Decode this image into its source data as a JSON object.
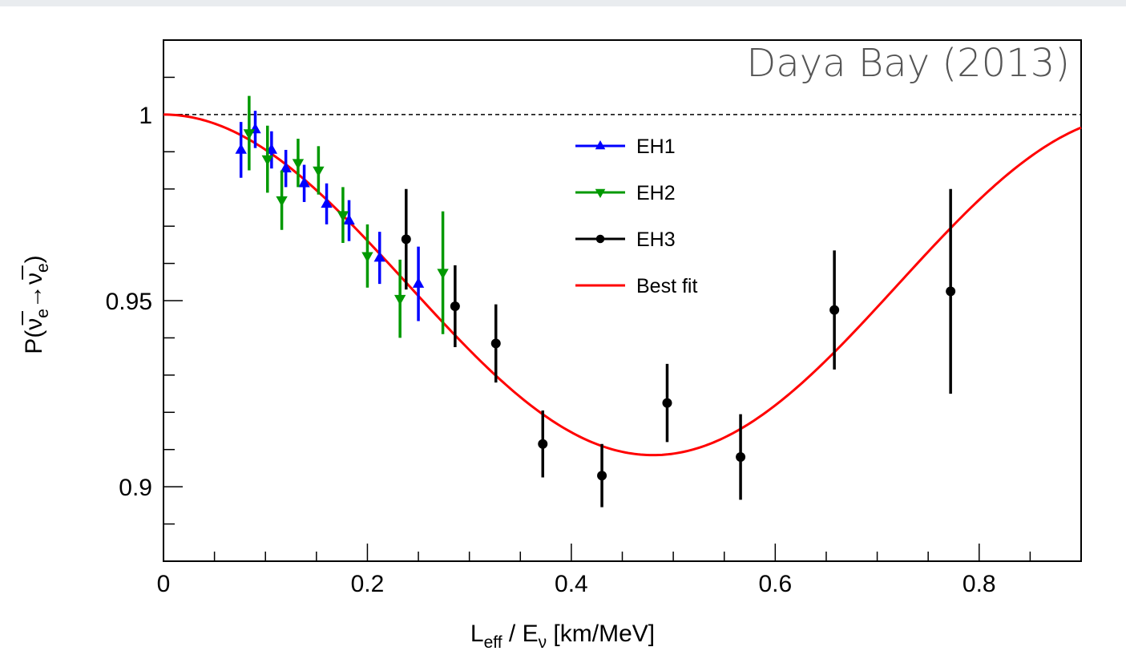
{
  "chart_data": {
    "type": "scatter",
    "title": "",
    "annotation": "Daya Bay (2013)",
    "xlabel": {
      "main": "L",
      "sub": "eff",
      "mid": " / E",
      "sub2": "ν",
      "tail": " [km/MeV]"
    },
    "ylabel": {
      "text": "P(ν̅e→ν̅e)",
      "parts": [
        "P(",
        "ν̅",
        "e",
        "→",
        "ν̅",
        "e",
        ")"
      ]
    },
    "xlim": [
      0,
      0.9
    ],
    "ylim": [
      0.88,
      1.02
    ],
    "x_ticks": [
      {
        "value": 0,
        "label": "0"
      },
      {
        "value": 0.2,
        "label": "0.2"
      },
      {
        "value": 0.4,
        "label": "0.4"
      },
      {
        "value": 0.6,
        "label": "0.6"
      },
      {
        "value": 0.8,
        "label": "0.8"
      }
    ],
    "y_ticks": [
      {
        "value": 0.9,
        "label": "0.9"
      },
      {
        "value": 0.95,
        "label": "0.95"
      },
      {
        "value": 1.0,
        "label": "1"
      }
    ],
    "reference_line": {
      "y": 1.0,
      "style": "dashed"
    },
    "legend": {
      "position": "top-center",
      "entries": [
        {
          "name": "EH1",
          "marker": "triangle-up",
          "color": "#0000ff"
        },
        {
          "name": "EH2",
          "marker": "triangle-down",
          "color": "#009900"
        },
        {
          "name": "EH3",
          "marker": "circle",
          "color": "#000000"
        },
        {
          "name": "Best fit",
          "marker": "line",
          "color": "#ff0000"
        }
      ]
    },
    "series": [
      {
        "name": "EH1",
        "color": "#0000ff",
        "marker": "triangle-up",
        "points": [
          {
            "x": 0.076,
            "y": 0.9905,
            "err": 0.0075
          },
          {
            "x": 0.09,
            "y": 0.996,
            "err": 0.005
          },
          {
            "x": 0.106,
            "y": 0.9905,
            "err": 0.005
          },
          {
            "x": 0.12,
            "y": 0.9855,
            "err": 0.005
          },
          {
            "x": 0.138,
            "y": 0.9815,
            "err": 0.005
          },
          {
            "x": 0.16,
            "y": 0.976,
            "err": 0.0055
          },
          {
            "x": 0.182,
            "y": 0.9715,
            "err": 0.0055
          },
          {
            "x": 0.212,
            "y": 0.9615,
            "err": 0.007
          },
          {
            "x": 0.25,
            "y": 0.9545,
            "err": 0.01
          }
        ]
      },
      {
        "name": "EH2",
        "color": "#009900",
        "marker": "triangle-down",
        "points": [
          {
            "x": 0.084,
            "y": 0.995,
            "err": 0.01
          },
          {
            "x": 0.102,
            "y": 0.988,
            "err": 0.009
          },
          {
            "x": 0.116,
            "y": 0.977,
            "err": 0.008
          },
          {
            "x": 0.132,
            "y": 0.987,
            "err": 0.0065
          },
          {
            "x": 0.152,
            "y": 0.985,
            "err": 0.0065
          },
          {
            "x": 0.176,
            "y": 0.973,
            "err": 0.0075
          },
          {
            "x": 0.2,
            "y": 0.962,
            "err": 0.0085
          },
          {
            "x": 0.232,
            "y": 0.9505,
            "err": 0.0105
          },
          {
            "x": 0.274,
            "y": 0.9575,
            "err": 0.0165
          }
        ]
      },
      {
        "name": "EH3",
        "color": "#000000",
        "marker": "circle",
        "points": [
          {
            "x": 0.238,
            "y": 0.9665,
            "err": 0.0135
          },
          {
            "x": 0.286,
            "y": 0.9485,
            "err": 0.011
          },
          {
            "x": 0.326,
            "y": 0.9385,
            "err": 0.0105
          },
          {
            "x": 0.372,
            "y": 0.9115,
            "err": 0.009
          },
          {
            "x": 0.43,
            "y": 0.903,
            "err": 0.0085
          },
          {
            "x": 0.494,
            "y": 0.9225,
            "err": 0.0105
          },
          {
            "x": 0.566,
            "y": 0.908,
            "err": 0.0115
          },
          {
            "x": 0.658,
            "y": 0.9475,
            "err": 0.016
          },
          {
            "x": 0.772,
            "y": 0.9525,
            "err": 0.0275
          }
        ]
      }
    ],
    "best_fit": {
      "name": "Best fit",
      "color": "#ff0000",
      "curve": {
        "form": "1 - A*sin^2(k*x)",
        "A": 0.0915,
        "k": 3.272
      }
    }
  }
}
